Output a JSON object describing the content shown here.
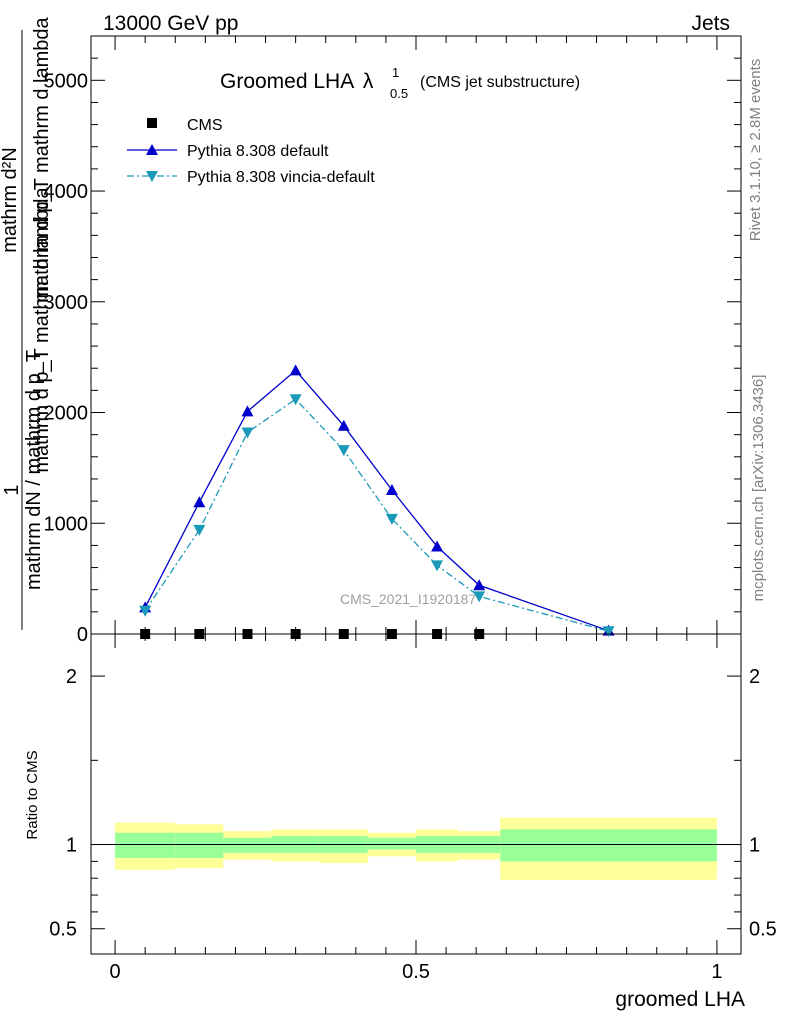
{
  "header": {
    "energy": "13000 GeV pp",
    "category": "Jets"
  },
  "title": {
    "main": "Groomed LHA",
    "lambda": "λ",
    "sup": "1",
    "sub": "0.5",
    "suffix": "(CMS jet substructure)"
  },
  "side_labels": {
    "rivet": "Rivet 3.1.10, ≥ 2.8M events",
    "mcplots": "mcplots.cern.ch [arXiv:1306.3436]"
  },
  "watermark": "CMS_2021_I1920187",
  "y_axis_label": {
    "one": "1",
    "numerator_top": "mathrm d²N",
    "numerator_bottom": "mathrm d p_T mathrm d lambda",
    "denominator_top": "mathrm dN / mathrm d p_T",
    "denominator_bottom": "mathrm d p_T mathrm d lambda"
  },
  "legend": {
    "cms": "CMS",
    "default": "Pythia 8.308 default",
    "vincia": "Pythia 8.308 vincia-default"
  },
  "ratio_axis_label": "Ratio to CMS",
  "x_axis_label": "groomed LHA",
  "colors": {
    "default": "#0000cc",
    "vincia": "#1a9ab8",
    "band_inner": "#99ff99",
    "band_outer": "#ffff99",
    "cms": "#000000"
  },
  "chart_data": {
    "type": "line",
    "main_panel": {
      "xlim": [
        -0.04,
        1.04
      ],
      "ylim": [
        0,
        5400
      ],
      "y_ticks": [
        0,
        1000,
        2000,
        3000,
        4000,
        5000
      ],
      "y_tick_labels": [
        "0",
        "1000",
        "2000",
        "3000",
        "4000",
        "5000"
      ],
      "series": [
        {
          "name": "CMS",
          "marker": "square",
          "x": [
            0.05,
            0.14,
            0.22,
            0.3,
            0.38,
            0.46,
            0.535,
            0.605
          ],
          "y": [
            0,
            0,
            0,
            0,
            0,
            0,
            0,
            0
          ]
        },
        {
          "name": "Pythia 8.308 default",
          "marker": "triangle-up",
          "x": [
            0.05,
            0.14,
            0.22,
            0.3,
            0.38,
            0.46,
            0.535,
            0.605,
            0.82
          ],
          "y": [
            240,
            1190,
            2010,
            2380,
            1880,
            1300,
            790,
            440,
            30
          ]
        },
        {
          "name": "Pythia 8.308 vincia-default",
          "marker": "triangle-down",
          "x": [
            0.05,
            0.14,
            0.22,
            0.3,
            0.38,
            0.46,
            0.535,
            0.605,
            0.82
          ],
          "y": [
            210,
            940,
            1820,
            2120,
            1660,
            1040,
            620,
            340,
            25
          ]
        }
      ]
    },
    "ratio_panel": {
      "xlim": [
        -0.04,
        1.04
      ],
      "ylim": [
        0.35,
        2.25
      ],
      "y_ticks": [
        0.5,
        1,
        2
      ],
      "y_tick_labels": [
        "0.5",
        "1",
        "2"
      ],
      "x_ticks": [
        0,
        0.5,
        1
      ],
      "x_tick_labels": [
        "0",
        "0.5",
        "1"
      ],
      "bins": [
        {
          "x0": 0.0,
          "x1": 0.1,
          "in_lo": 0.92,
          "in_hi": 1.07,
          "out_lo": 0.85,
          "out_hi": 1.13
        },
        {
          "x0": 0.1,
          "x1": 0.18,
          "in_lo": 0.92,
          "in_hi": 1.07,
          "out_lo": 0.86,
          "out_hi": 1.12
        },
        {
          "x0": 0.18,
          "x1": 0.26,
          "in_lo": 0.95,
          "in_hi": 1.04,
          "out_lo": 0.91,
          "out_hi": 1.08
        },
        {
          "x0": 0.26,
          "x1": 0.34,
          "in_lo": 0.95,
          "in_hi": 1.05,
          "out_lo": 0.9,
          "out_hi": 1.09
        },
        {
          "x0": 0.34,
          "x1": 0.42,
          "in_lo": 0.95,
          "in_hi": 1.05,
          "out_lo": 0.89,
          "out_hi": 1.09
        },
        {
          "x0": 0.42,
          "x1": 0.5,
          "in_lo": 0.97,
          "in_hi": 1.04,
          "out_lo": 0.93,
          "out_hi": 1.07
        },
        {
          "x0": 0.5,
          "x1": 0.57,
          "in_lo": 0.95,
          "in_hi": 1.05,
          "out_lo": 0.9,
          "out_hi": 1.09
        },
        {
          "x0": 0.57,
          "x1": 0.64,
          "in_lo": 0.95,
          "in_hi": 1.05,
          "out_lo": 0.91,
          "out_hi": 1.08
        },
        {
          "x0": 0.64,
          "x1": 1.0,
          "in_lo": 0.9,
          "in_hi": 1.09,
          "out_lo": 0.79,
          "out_hi": 1.16
        }
      ]
    }
  }
}
